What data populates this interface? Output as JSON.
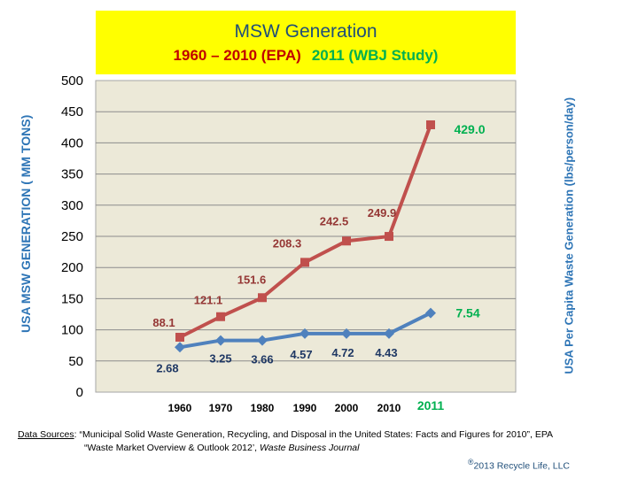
{
  "title": {
    "line1": "MSW Generation",
    "epa": "1960 – 2010 (EPA)",
    "wbj": "2011  (WBJ Study)"
  },
  "chart_data": {
    "type": "line",
    "categories": [
      "1960",
      "1970",
      "1980",
      "1990",
      "2000",
      "2010",
      "2011"
    ],
    "ylim": [
      0,
      500
    ],
    "yticks": [
      "0",
      "50",
      "100",
      "150",
      "200",
      "250",
      "300",
      "350",
      "400",
      "450",
      "500"
    ],
    "ylabel": "USA  MSW GENERATION ( MM TONS)",
    "y2label": "USA Per Capita Waste Generation (lbs/person/day)",
    "grid": true,
    "series": [
      {
        "color": "#c0504d",
        "values": [
          88.1,
          121.1,
          151.6,
          208.3,
          242.5,
          249.9,
          429.0
        ],
        "labels": [
          "88.1",
          "121.1",
          "151.6",
          "208.3",
          "242.5",
          "249.9",
          "429.0"
        ]
      },
      {
        "color": "#4f81bd",
        "values": [
          72,
          83,
          83,
          94,
          94,
          94,
          127
        ],
        "labels": [
          "2.68",
          "3.25",
          "3.66",
          "4.57",
          "4.72",
          "4.43",
          "7.54"
        ]
      }
    ],
    "highlight_color": "#00b050",
    "plot_bg": "#ece9d8"
  },
  "sources": {
    "label": "Data  Sources",
    "line1": ":  “Municipal Solid Waste Generation, Recycling, and Disposal in the United States:  Facts and Figures for 2010”,  EPA",
    "line2_main": "“Waste Market Overview & Outlook 2012’, ",
    "line2_italic": "Waste Business Journal"
  },
  "copyright": {
    "mark": "®",
    "text": "2013 Recycle Life, LLC"
  }
}
